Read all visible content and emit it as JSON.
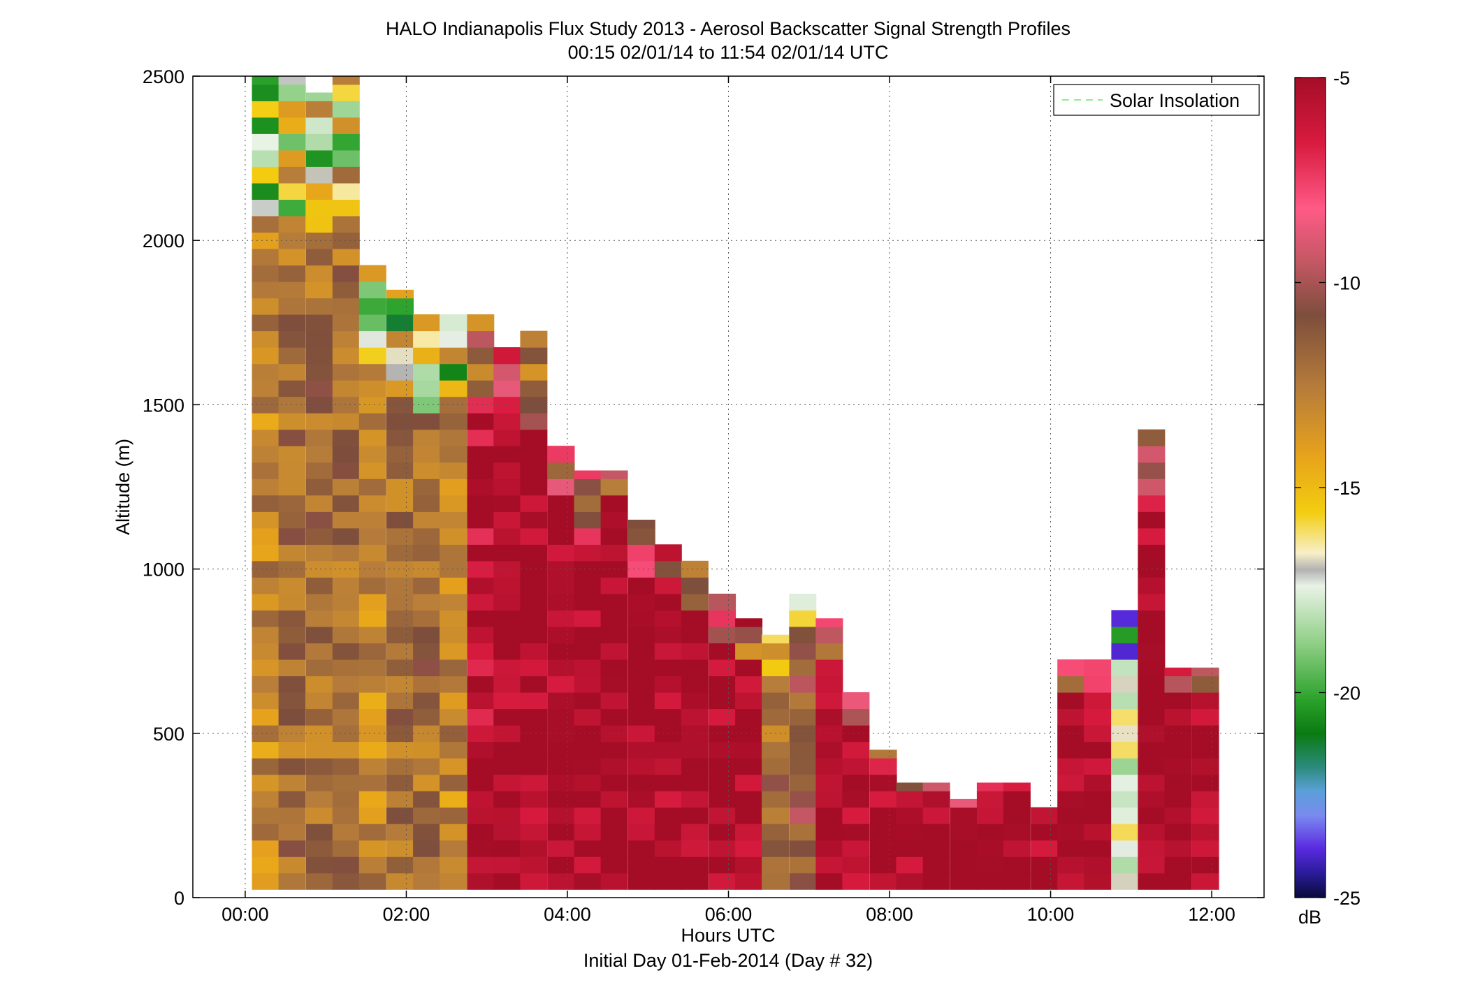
{
  "chart_data": {
    "type": "heatmap",
    "title": "HALO Indianapolis Flux Study 2013 - Aerosol Backscatter Signal Strength Profiles",
    "subtitle": "00:15 02/01/14 to 11:54 02/01/14  UTC",
    "xlabel": "Hours UTC",
    "xlabel2": "Initial Day 01-Feb-2014 (Day # 32)",
    "ylabel": "Altitude (m)",
    "xlim": [
      -0.65,
      12.65
    ],
    "ylim": [
      0,
      2500
    ],
    "x_ticks": [
      0,
      2,
      4,
      6,
      8,
      10,
      12
    ],
    "x_tick_labels": [
      "00:00",
      "02:00",
      "04:00",
      "06:00",
      "08:00",
      "10:00",
      "12:00"
    ],
    "y_ticks": [
      0,
      500,
      1000,
      1500,
      2000,
      2500
    ],
    "y_tick_labels": [
      "0",
      "500",
      "1000",
      "1500",
      "2000",
      "2500"
    ],
    "grid": true,
    "legend": {
      "position": "top-right",
      "entries": [
        {
          "label": "Solar Insolation",
          "color": "#90ee90",
          "style": "dashed"
        }
      ]
    },
    "colorbar": {
      "label": "dB",
      "range": [
        -25,
        -5
      ],
      "ticks": [
        -5,
        -10,
        -15,
        -20,
        -25
      ],
      "tick_labels": [
        "-5",
        "-10",
        "-15",
        "-20",
        "-25"
      ]
    },
    "columns": [
      {
        "time": 0.25,
        "top": 2500,
        "dominant_dB": -13
      },
      {
        "time": 0.58,
        "top": 2500,
        "dominant_dB": -12
      },
      {
        "time": 0.92,
        "top": 2450,
        "dominant_dB": -12
      },
      {
        "time": 1.25,
        "top": 2500,
        "dominant_dB": -12
      },
      {
        "time": 1.58,
        "top": 1925,
        "dominant_dB": -13
      },
      {
        "time": 1.92,
        "top": 1850,
        "dominant_dB": -12
      },
      {
        "time": 2.25,
        "top": 1775,
        "dominant_dB": -12
      },
      {
        "time": 2.58,
        "top": 1775,
        "dominant_dB": -13
      },
      {
        "time": 2.92,
        "top": 1775,
        "dominant_dB": -6
      },
      {
        "time": 3.25,
        "top": 1675,
        "dominant_dB": -5
      },
      {
        "time": 3.58,
        "top": 1725,
        "dominant_dB": -5
      },
      {
        "time": 3.92,
        "top": 1375,
        "dominant_dB": -5
      },
      {
        "time": 4.25,
        "top": 1300,
        "dominant_dB": -5
      },
      {
        "time": 4.58,
        "top": 1300,
        "dominant_dB": -5
      },
      {
        "time": 4.92,
        "top": 1150,
        "dominant_dB": -5
      },
      {
        "time": 5.25,
        "top": 1075,
        "dominant_dB": -5
      },
      {
        "time": 5.58,
        "top": 1025,
        "dominant_dB": -5
      },
      {
        "time": 5.92,
        "top": 925,
        "dominant_dB": -5
      },
      {
        "time": 6.25,
        "top": 850,
        "dominant_dB": -5
      },
      {
        "time": 6.58,
        "top": 800,
        "dominant_dB": -12
      },
      {
        "time": 6.92,
        "top": 925,
        "dominant_dB": -11
      },
      {
        "time": 7.25,
        "top": 850,
        "dominant_dB": -5
      },
      {
        "time": 7.58,
        "top": 625,
        "dominant_dB": -5
      },
      {
        "time": 7.92,
        "top": 450,
        "dominant_dB": -5
      },
      {
        "time": 8.25,
        "top": 350,
        "dominant_dB": -5
      },
      {
        "time": 8.58,
        "top": 350,
        "dominant_dB": -5
      },
      {
        "time": 8.92,
        "top": 300,
        "dominant_dB": -5
      },
      {
        "time": 9.25,
        "top": 350,
        "dominant_dB": -5
      },
      {
        "time": 9.58,
        "top": 350,
        "dominant_dB": -5
      },
      {
        "time": 9.92,
        "top": 275,
        "dominant_dB": -5
      },
      {
        "time": 10.25,
        "top": 725,
        "dominant_dB": -5
      },
      {
        "time": 10.58,
        "top": 725,
        "dominant_dB": -5
      },
      {
        "time": 10.92,
        "top": 875,
        "dominant_dB": -17
      },
      {
        "time": 11.25,
        "top": 1425,
        "dominant_dB": -5
      },
      {
        "time": 11.58,
        "top": 700,
        "dominant_dB": -5
      },
      {
        "time": 11.92,
        "top": 700,
        "dominant_dB": -5
      }
    ]
  }
}
